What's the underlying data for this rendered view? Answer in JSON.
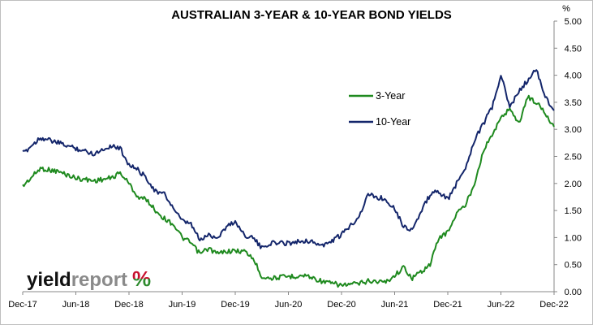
{
  "chart_data": {
    "type": "line",
    "title": "AUSTRALIAN 3-YEAR & 10-YEAR BOND YIELDS",
    "y_unit": "%",
    "ylim": [
      0,
      5
    ],
    "y_ticks": [
      "0.00",
      "0.50",
      "1.00",
      "1.50",
      "2.00",
      "2.50",
      "3.00",
      "3.50",
      "4.00",
      "4.50",
      "5.00"
    ],
    "x_ticks": [
      "Dec-17",
      "Jun-18",
      "Dec-18",
      "Jun-19",
      "Dec-19",
      "Jun-20",
      "Dec-20",
      "Jun-21",
      "Dec-21",
      "Jun-22",
      "Dec-22"
    ],
    "grid": false,
    "legend_position": "center-right",
    "series": [
      {
        "name": "3-Year",
        "color": "#1f8a1f",
        "values": [
          [
            "Dec-17",
            1.95
          ],
          [
            "Feb-18",
            2.28
          ],
          [
            "Apr-18",
            2.22
          ],
          [
            "Jun-18",
            2.1
          ],
          [
            "Aug-18",
            2.05
          ],
          [
            "Oct-18",
            2.1
          ],
          [
            "Nov-18",
            2.2
          ],
          [
            "Dec-18",
            2.0
          ],
          [
            "Jan-19",
            1.75
          ],
          [
            "Feb-19",
            1.7
          ],
          [
            "Mar-19",
            1.5
          ],
          [
            "Apr-19",
            1.35
          ],
          [
            "May-19",
            1.25
          ],
          [
            "Jun-19",
            1.0
          ],
          [
            "Jul-19",
            0.9
          ],
          [
            "Aug-19",
            0.7
          ],
          [
            "Sep-19",
            0.8
          ],
          [
            "Oct-19",
            0.7
          ],
          [
            "Nov-19",
            0.75
          ],
          [
            "Dec-19",
            0.75
          ],
          [
            "Jan-20",
            0.75
          ],
          [
            "Feb-20",
            0.62
          ],
          [
            "Mar-20",
            0.28
          ],
          [
            "Apr-20",
            0.25
          ],
          [
            "Jun-20",
            0.28
          ],
          [
            "Aug-20",
            0.3
          ],
          [
            "Oct-20",
            0.18
          ],
          [
            "Dec-20",
            0.12
          ],
          [
            "Feb-21",
            0.15
          ],
          [
            "Mar-21",
            0.2
          ],
          [
            "May-21",
            0.18
          ],
          [
            "Jun-21",
            0.3
          ],
          [
            "Jul-21",
            0.45
          ],
          [
            "Aug-21",
            0.25
          ],
          [
            "Oct-21",
            0.5
          ],
          [
            "Nov-21",
            1.0
          ],
          [
            "Dec-21",
            1.1
          ],
          [
            "Jan-22",
            1.45
          ],
          [
            "Feb-22",
            1.6
          ],
          [
            "Mar-22",
            2.0
          ],
          [
            "Apr-22",
            2.6
          ],
          [
            "May-22",
            2.9
          ],
          [
            "Jun-22",
            3.2
          ],
          [
            "Jul-22",
            3.4
          ],
          [
            "Aug-22",
            3.1
          ],
          [
            "Sep-22",
            3.6
          ],
          [
            "Oct-22",
            3.5
          ],
          [
            "Nov-22",
            3.3
          ],
          [
            "Dec-22",
            3.05
          ]
        ]
      },
      {
        "name": "10-Year",
        "color": "#14266b",
        "values": [
          [
            "Dec-17",
            2.55
          ],
          [
            "Feb-18",
            2.85
          ],
          [
            "Apr-18",
            2.75
          ],
          [
            "Jun-18",
            2.65
          ],
          [
            "Aug-18",
            2.55
          ],
          [
            "Oct-18",
            2.7
          ],
          [
            "Nov-18",
            2.65
          ],
          [
            "Dec-18",
            2.35
          ],
          [
            "Jan-19",
            2.25
          ],
          [
            "Feb-19",
            2.1
          ],
          [
            "Mar-19",
            1.85
          ],
          [
            "Apr-19",
            1.8
          ],
          [
            "May-19",
            1.55
          ],
          [
            "Jun-19",
            1.3
          ],
          [
            "Jul-19",
            1.25
          ],
          [
            "Aug-19",
            0.95
          ],
          [
            "Sep-19",
            1.05
          ],
          [
            "Oct-19",
            1.0
          ],
          [
            "Nov-19",
            1.2
          ],
          [
            "Dec-19",
            1.3
          ],
          [
            "Jan-20",
            1.05
          ],
          [
            "Feb-20",
            1.0
          ],
          [
            "Mar-20",
            0.8
          ],
          [
            "Apr-20",
            0.9
          ],
          [
            "Jun-20",
            0.9
          ],
          [
            "Aug-20",
            0.95
          ],
          [
            "Oct-20",
            0.85
          ],
          [
            "Dec-20",
            1.05
          ],
          [
            "Feb-21",
            1.4
          ],
          [
            "Mar-21",
            1.8
          ],
          [
            "May-21",
            1.7
          ],
          [
            "Jun-21",
            1.55
          ],
          [
            "Jul-21",
            1.2
          ],
          [
            "Aug-21",
            1.15
          ],
          [
            "Oct-21",
            1.8
          ],
          [
            "Nov-21",
            1.85
          ],
          [
            "Dec-21",
            1.7
          ],
          [
            "Jan-22",
            2.0
          ],
          [
            "Feb-22",
            2.3
          ],
          [
            "Mar-22",
            2.8
          ],
          [
            "Apr-22",
            3.1
          ],
          [
            "May-22",
            3.4
          ],
          [
            "Jun-22",
            4.0
          ],
          [
            "Jul-22",
            3.4
          ],
          [
            "Aug-22",
            3.7
          ],
          [
            "Sep-22",
            3.9
          ],
          [
            "Oct-22",
            4.1
          ],
          [
            "Nov-22",
            3.6
          ],
          [
            "Dec-22",
            3.35
          ]
        ]
      }
    ]
  },
  "logo": {
    "part1": "yield",
    "part2": "report",
    "pct": "%",
    "pct_color_top": "#c8102e",
    "pct_color_bottom": "#2e8b2e"
  }
}
